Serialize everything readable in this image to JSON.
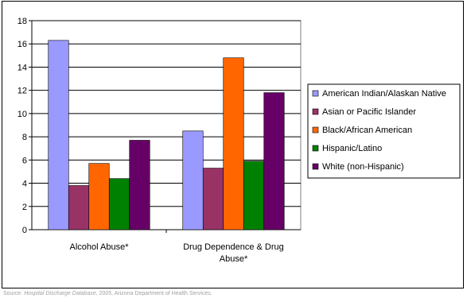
{
  "chart_data": {
    "type": "bar",
    "title": "",
    "xlabel": "",
    "ylabel": "",
    "categories": [
      "Alcohol Abuse*",
      "Drug Dependence & Drug Abuse*"
    ],
    "category_lines": [
      [
        "Alcohol Abuse*"
      ],
      [
        "Drug Dependence & Drug",
        "Abuse*"
      ]
    ],
    "series": [
      {
        "name": "American Indian/Alaskan Native",
        "color": "#9999FF",
        "values": [
          16.3,
          8.5
        ]
      },
      {
        "name": "Asian or Pacific Islander",
        "color": "#993366",
        "values": [
          3.8,
          5.3
        ]
      },
      {
        "name": "Black/African American",
        "color": "#FF6600",
        "values": [
          5.7,
          14.8
        ]
      },
      {
        "name": "Hispanic/Latino",
        "color": "#008000",
        "values": [
          4.4,
          5.9
        ]
      },
      {
        "name": "White (non-Hispanic)",
        "color": "#660066",
        "values": [
          7.7,
          11.8
        ]
      }
    ],
    "ylim": [
      0,
      18
    ],
    "yticks": [
      0,
      2,
      4,
      6,
      8,
      10,
      12,
      14,
      16,
      18
    ],
    "grid": true,
    "legend_position": "right"
  },
  "source": {
    "prefix": "Source: ",
    "title": "Hospital Discharge Database",
    "suffix": ", 2005. Arizona Department of Health Services."
  }
}
